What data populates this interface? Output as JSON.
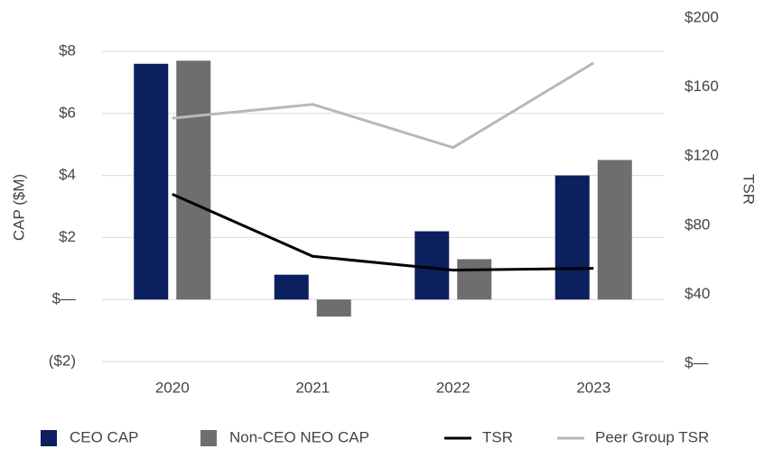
{
  "chart_data": {
    "type": "bar",
    "categories": [
      "2020",
      "2021",
      "2022",
      "2023"
    ],
    "ylabel": "CAP ($M)",
    "y2label": "TSR",
    "ylim": [
      -2,
      8
    ],
    "yticks": [
      {
        "value": -2,
        "label": "($2)"
      },
      {
        "value": 0,
        "label": "$—"
      },
      {
        "value": 2,
        "label": "$2"
      },
      {
        "value": 4,
        "label": "$4"
      },
      {
        "value": 6,
        "label": "$6"
      },
      {
        "value": 8,
        "label": "$8"
      }
    ],
    "y2lim": [
      0,
      200
    ],
    "y2ticks": [
      {
        "value": 0,
        "label": "$—"
      },
      {
        "value": 40,
        "label": "$40"
      },
      {
        "value": 80,
        "label": "$80"
      },
      {
        "value": 120,
        "label": "$120"
      },
      {
        "value": 160,
        "label": "$160"
      },
      {
        "value": 200,
        "label": "$200"
      }
    ],
    "grid": true,
    "legend": "bottom",
    "series": [
      {
        "name": "CEO CAP",
        "type": "bar",
        "color": "#0c1f5e",
        "values": [
          7.6,
          0.8,
          2.2,
          4.0
        ]
      },
      {
        "name": "Non-CEO NEO CAP",
        "type": "bar",
        "color": "#6e6e6e",
        "values": [
          7.7,
          -0.55,
          1.3,
          4.5
        ]
      },
      {
        "name": "TSR",
        "type": "line",
        "axis": "y2",
        "color": "#000000",
        "values": [
          98,
          62,
          54,
          55
        ]
      },
      {
        "name": "Peer Group TSR",
        "type": "line",
        "axis": "y2",
        "color": "#b8b8b8",
        "values": [
          142,
          150,
          125,
          174
        ]
      }
    ]
  }
}
